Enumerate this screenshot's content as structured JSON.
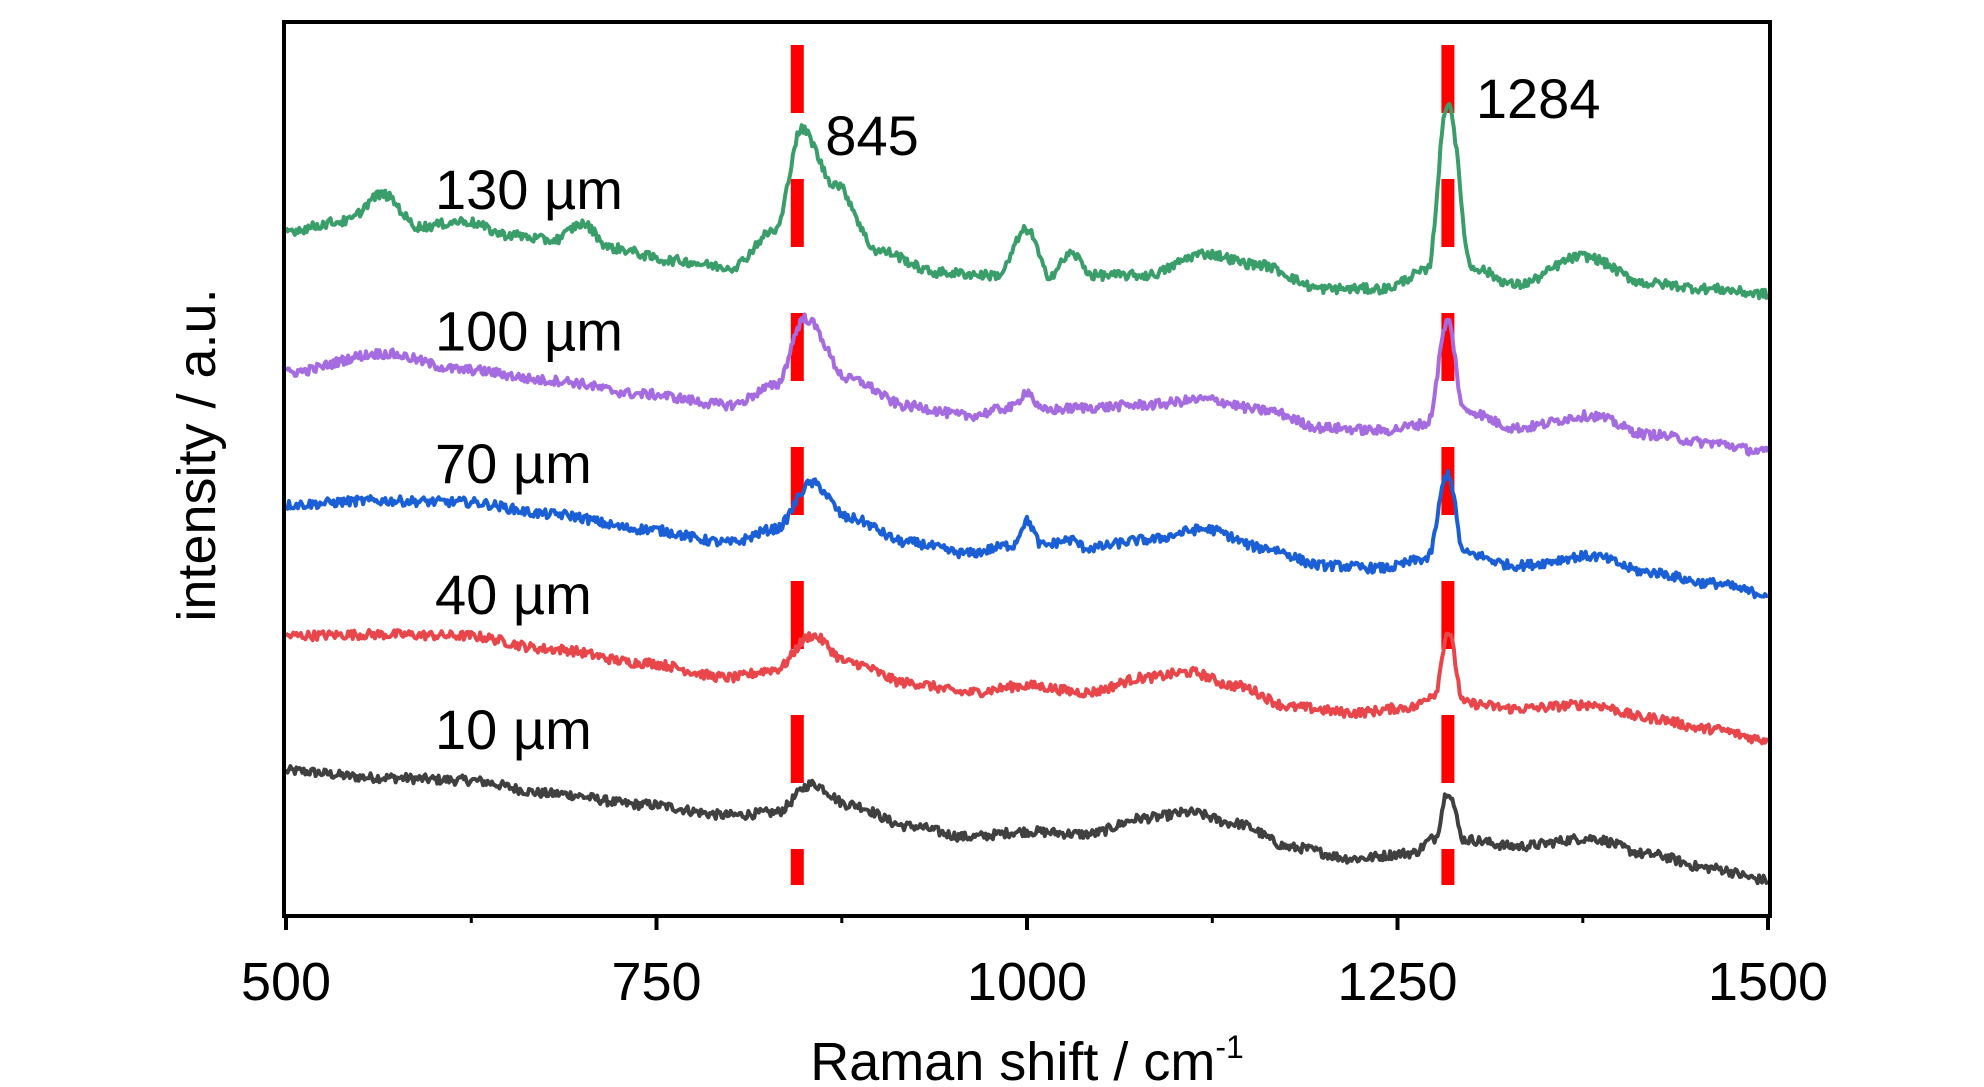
{
  "chart_data": {
    "type": "line",
    "title": "",
    "xlabel": "Raman shift / cm",
    "xlabel_superscript": "-1",
    "ylabel": "intensity / a.u.",
    "xlim": [
      500,
      1500
    ],
    "xticks": [
      500,
      750,
      1000,
      1250,
      1500
    ],
    "xtick_labels": [
      "500",
      "750",
      "1000",
      "1250",
      "1500"
    ],
    "y_ticks_shown": false,
    "grid": false,
    "legend": "none (inline labels)",
    "reference_lines": [
      {
        "x": 845,
        "label": "845",
        "color": "#ff0000",
        "style": "dashed"
      },
      {
        "x": 1284,
        "label": "1284",
        "color": "#ff0000",
        "style": "dashed"
      }
    ],
    "series": [
      {
        "name": "10 µm",
        "color": "#404040",
        "baseline_offset": 0,
        "x": [
          500,
          560,
          620,
          680,
          740,
          800,
          830,
          855,
          880,
          920,
          960,
          1000,
          1040,
          1080,
          1110,
          1140,
          1180,
          1220,
          1260,
          1275,
          1284,
          1295,
          1330,
          1380,
          1420,
          1460,
          1500
        ],
        "values": [
          1.55,
          1.5,
          1.48,
          1.38,
          1.3,
          1.22,
          1.24,
          1.45,
          1.3,
          1.14,
          1.06,
          1.1,
          1.08,
          1.2,
          1.24,
          1.16,
          0.98,
          0.9,
          0.94,
          1.05,
          1.4,
          1.04,
          0.99,
          1.05,
          0.93,
          0.83,
          0.74
        ]
      },
      {
        "name": "40 µm",
        "color": "#e8464a",
        "baseline_offset": 1,
        "x": [
          500,
          560,
          620,
          680,
          740,
          800,
          830,
          855,
          880,
          920,
          960,
          1000,
          1040,
          1080,
          1110,
          1140,
          1180,
          1220,
          1260,
          1275,
          1284,
          1295,
          1330,
          1380,
          1420,
          1460,
          1500
        ],
        "values": [
          1.55,
          1.56,
          1.55,
          1.45,
          1.35,
          1.24,
          1.3,
          1.55,
          1.35,
          1.2,
          1.13,
          1.18,
          1.13,
          1.24,
          1.28,
          1.18,
          1.02,
          0.98,
          1.02,
          1.12,
          1.58,
          1.05,
          1.01,
          1.04,
          0.94,
          0.86,
          0.78
        ]
      },
      {
        "name": "70 µm",
        "color": "#1b5fd6",
        "baseline_offset": 2,
        "x": [
          500,
          560,
          620,
          680,
          740,
          800,
          830,
          855,
          880,
          920,
          960,
          990,
          1000,
          1010,
          1030,
          1040,
          1080,
          1120,
          1160,
          1200,
          1240,
          1270,
          1284,
          1295,
          1330,
          1380,
          1420,
          1460,
          1500
        ],
        "values": [
          1.52,
          1.55,
          1.54,
          1.45,
          1.34,
          1.24,
          1.34,
          1.68,
          1.42,
          1.24,
          1.16,
          1.22,
          1.4,
          1.22,
          1.26,
          1.2,
          1.26,
          1.34,
          1.2,
          1.07,
          1.05,
          1.12,
          1.75,
          1.16,
          1.07,
          1.14,
          1.02,
          0.94,
          0.86
        ]
      },
      {
        "name": "100 µm",
        "color": "#a56be0",
        "baseline_offset": 3,
        "x": [
          500,
          565,
          620,
          680,
          740,
          800,
          830,
          850,
          880,
          920,
          960,
          990,
          1000,
          1010,
          1040,
          1080,
          1120,
          1160,
          1200,
          1240,
          1270,
          1284,
          1295,
          1330,
          1380,
          1420,
          1460,
          1500
        ],
        "values": [
          1.5,
          1.64,
          1.52,
          1.44,
          1.34,
          1.26,
          1.4,
          1.9,
          1.45,
          1.25,
          1.18,
          1.24,
          1.36,
          1.22,
          1.24,
          1.26,
          1.3,
          1.22,
          1.09,
          1.07,
          1.12,
          1.88,
          1.22,
          1.09,
          1.18,
          1.04,
          0.98,
          0.91
        ]
      },
      {
        "name": "130 µm",
        "color": "#3a9e6a",
        "baseline_offset": 4,
        "x": [
          500,
          540,
          565,
          590,
          620,
          650,
          680,
          700,
          720,
          760,
          800,
          830,
          848,
          870,
          900,
          940,
          980,
          1000,
          1015,
          1030,
          1045,
          1080,
          1120,
          1155,
          1200,
          1240,
          1270,
          1284,
          1300,
          1330,
          1375,
          1420,
          1460,
          1500
        ],
        "values": [
          1.55,
          1.62,
          1.82,
          1.58,
          1.62,
          1.52,
          1.48,
          1.6,
          1.42,
          1.33,
          1.28,
          1.55,
          2.3,
          1.9,
          1.4,
          1.24,
          1.22,
          1.56,
          1.22,
          1.38,
          1.22,
          1.22,
          1.38,
          1.3,
          1.12,
          1.12,
          1.25,
          2.5,
          1.28,
          1.15,
          1.36,
          1.16,
          1.12,
          1.08
        ]
      }
    ]
  }
}
